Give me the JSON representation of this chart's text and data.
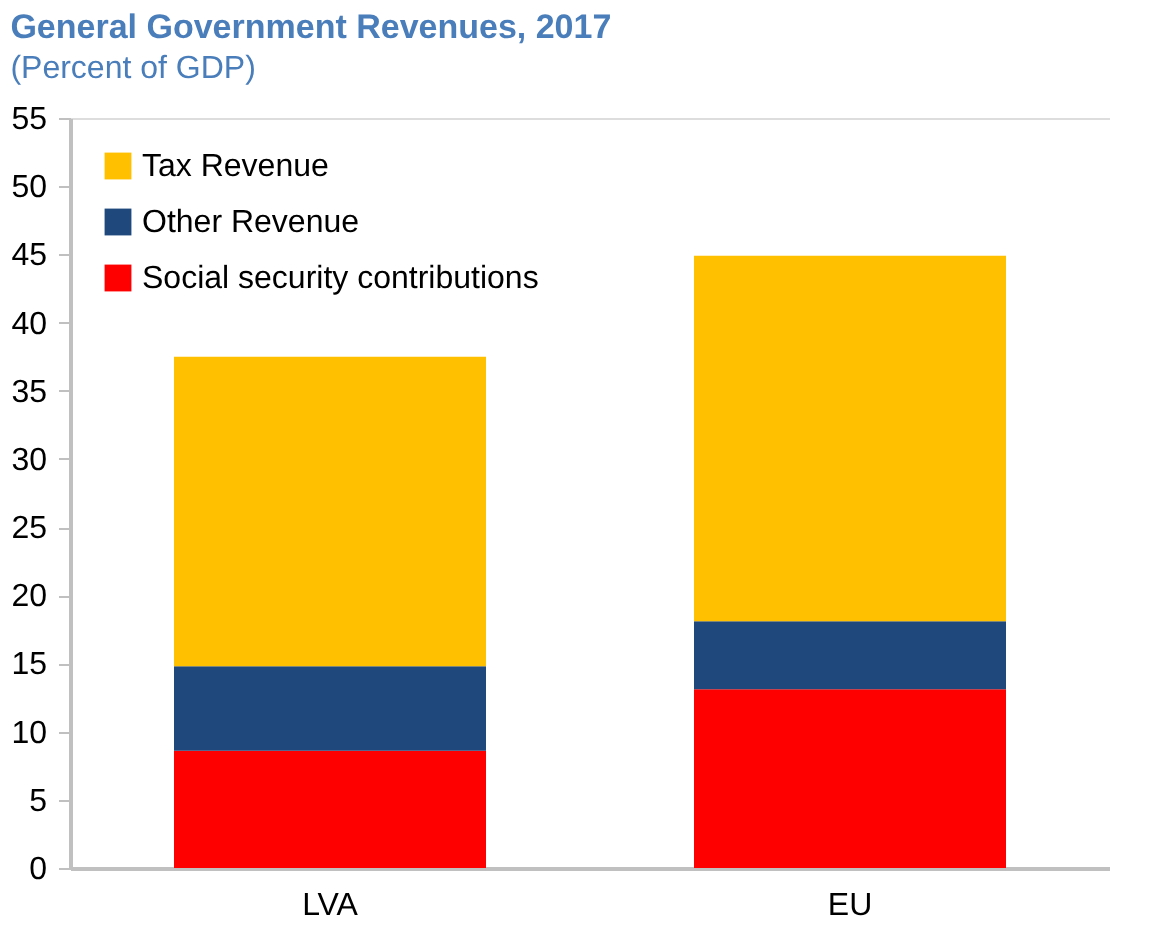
{
  "chart_data": {
    "type": "bar",
    "stacked": true,
    "title": "General Government Revenues, 2017",
    "subtitle": "(Percent of GDP)",
    "categories": [
      "LVA",
      "EU"
    ],
    "series": [
      {
        "name": "Social security contributions",
        "color": "#ff0000",
        "values": [
          8.6,
          13.1
        ]
      },
      {
        "name": "Other Revenue",
        "color": "#1f497d",
        "values": [
          6.2,
          5.0
        ]
      },
      {
        "name": "Tax Revenue",
        "color": "#ffc000",
        "values": [
          22.7,
          26.8
        ]
      }
    ],
    "ylim": [
      0,
      55
    ],
    "yticks": [
      0,
      5,
      10,
      15,
      20,
      25,
      30,
      35,
      40,
      45,
      50,
      55
    ],
    "grid": false,
    "legend": "top left"
  }
}
